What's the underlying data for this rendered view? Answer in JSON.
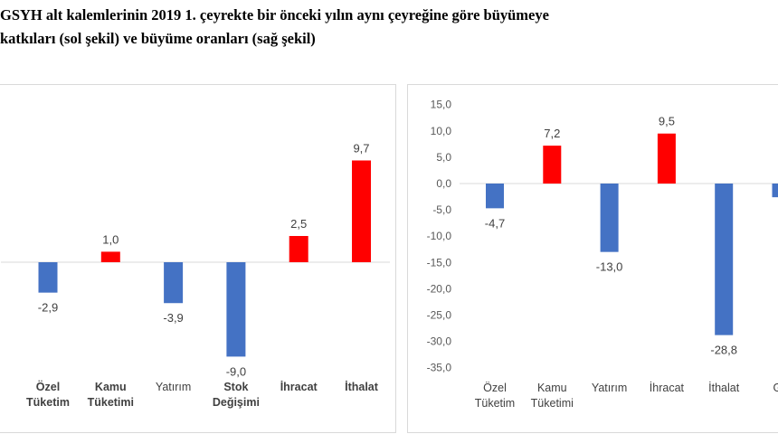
{
  "caption": {
    "line1": "GSYH alt kalemlerinin 2019 1. çeyrekte bir önceki yılın aynı çeyreğine göre büyümeye",
    "line2": "katkıları (sol şekil) ve büyüme oranları (sağ şekil)"
  },
  "colors": {
    "positive": "#ff0000",
    "negative": "#4472c4",
    "axis": "#d9d9d9"
  },
  "chart_data": [
    {
      "type": "bar",
      "title": "",
      "categories": [
        [
          "Özel",
          "Tüketim"
        ],
        [
          "Kamu",
          "Tüketimi"
        ],
        [
          "Yatırım"
        ],
        [
          "Stok",
          "Değişimi"
        ],
        [
          "İhracat"
        ],
        [
          "İthalat"
        ]
      ],
      "values": [
        -2.9,
        1.0,
        -3.9,
        -9.0,
        2.5,
        9.7
      ],
      "value_labels": [
        "-2,9",
        "1,0",
        "-3,9",
        "-9,0",
        "2,5",
        "9,7"
      ],
      "ylim": [
        -10,
        12
      ],
      "grid": false
    },
    {
      "type": "bar",
      "title": "",
      "categories": [
        [
          "Özel",
          "Tüketim"
        ],
        [
          "Kamu",
          "Tüketimi"
        ],
        [
          "Yatırım"
        ],
        [
          "İhracat"
        ],
        [
          "İthalat"
        ],
        [
          "GS"
        ]
      ],
      "values": [
        -4.7,
        7.2,
        -13.0,
        9.5,
        -28.8,
        -2.6
      ],
      "value_labels": [
        "-4,7",
        "7,2",
        "-13,0",
        "9,5",
        "-28,8",
        "-"
      ],
      "yticks": [
        "15,0",
        "10,0",
        "5,0",
        "0,0",
        "-5,0",
        "-10,0",
        "-15,0",
        "-20,0",
        "-25,0",
        "-30,0",
        "-35,0"
      ],
      "ylim": [
        -35,
        15
      ],
      "grid": false
    }
  ]
}
